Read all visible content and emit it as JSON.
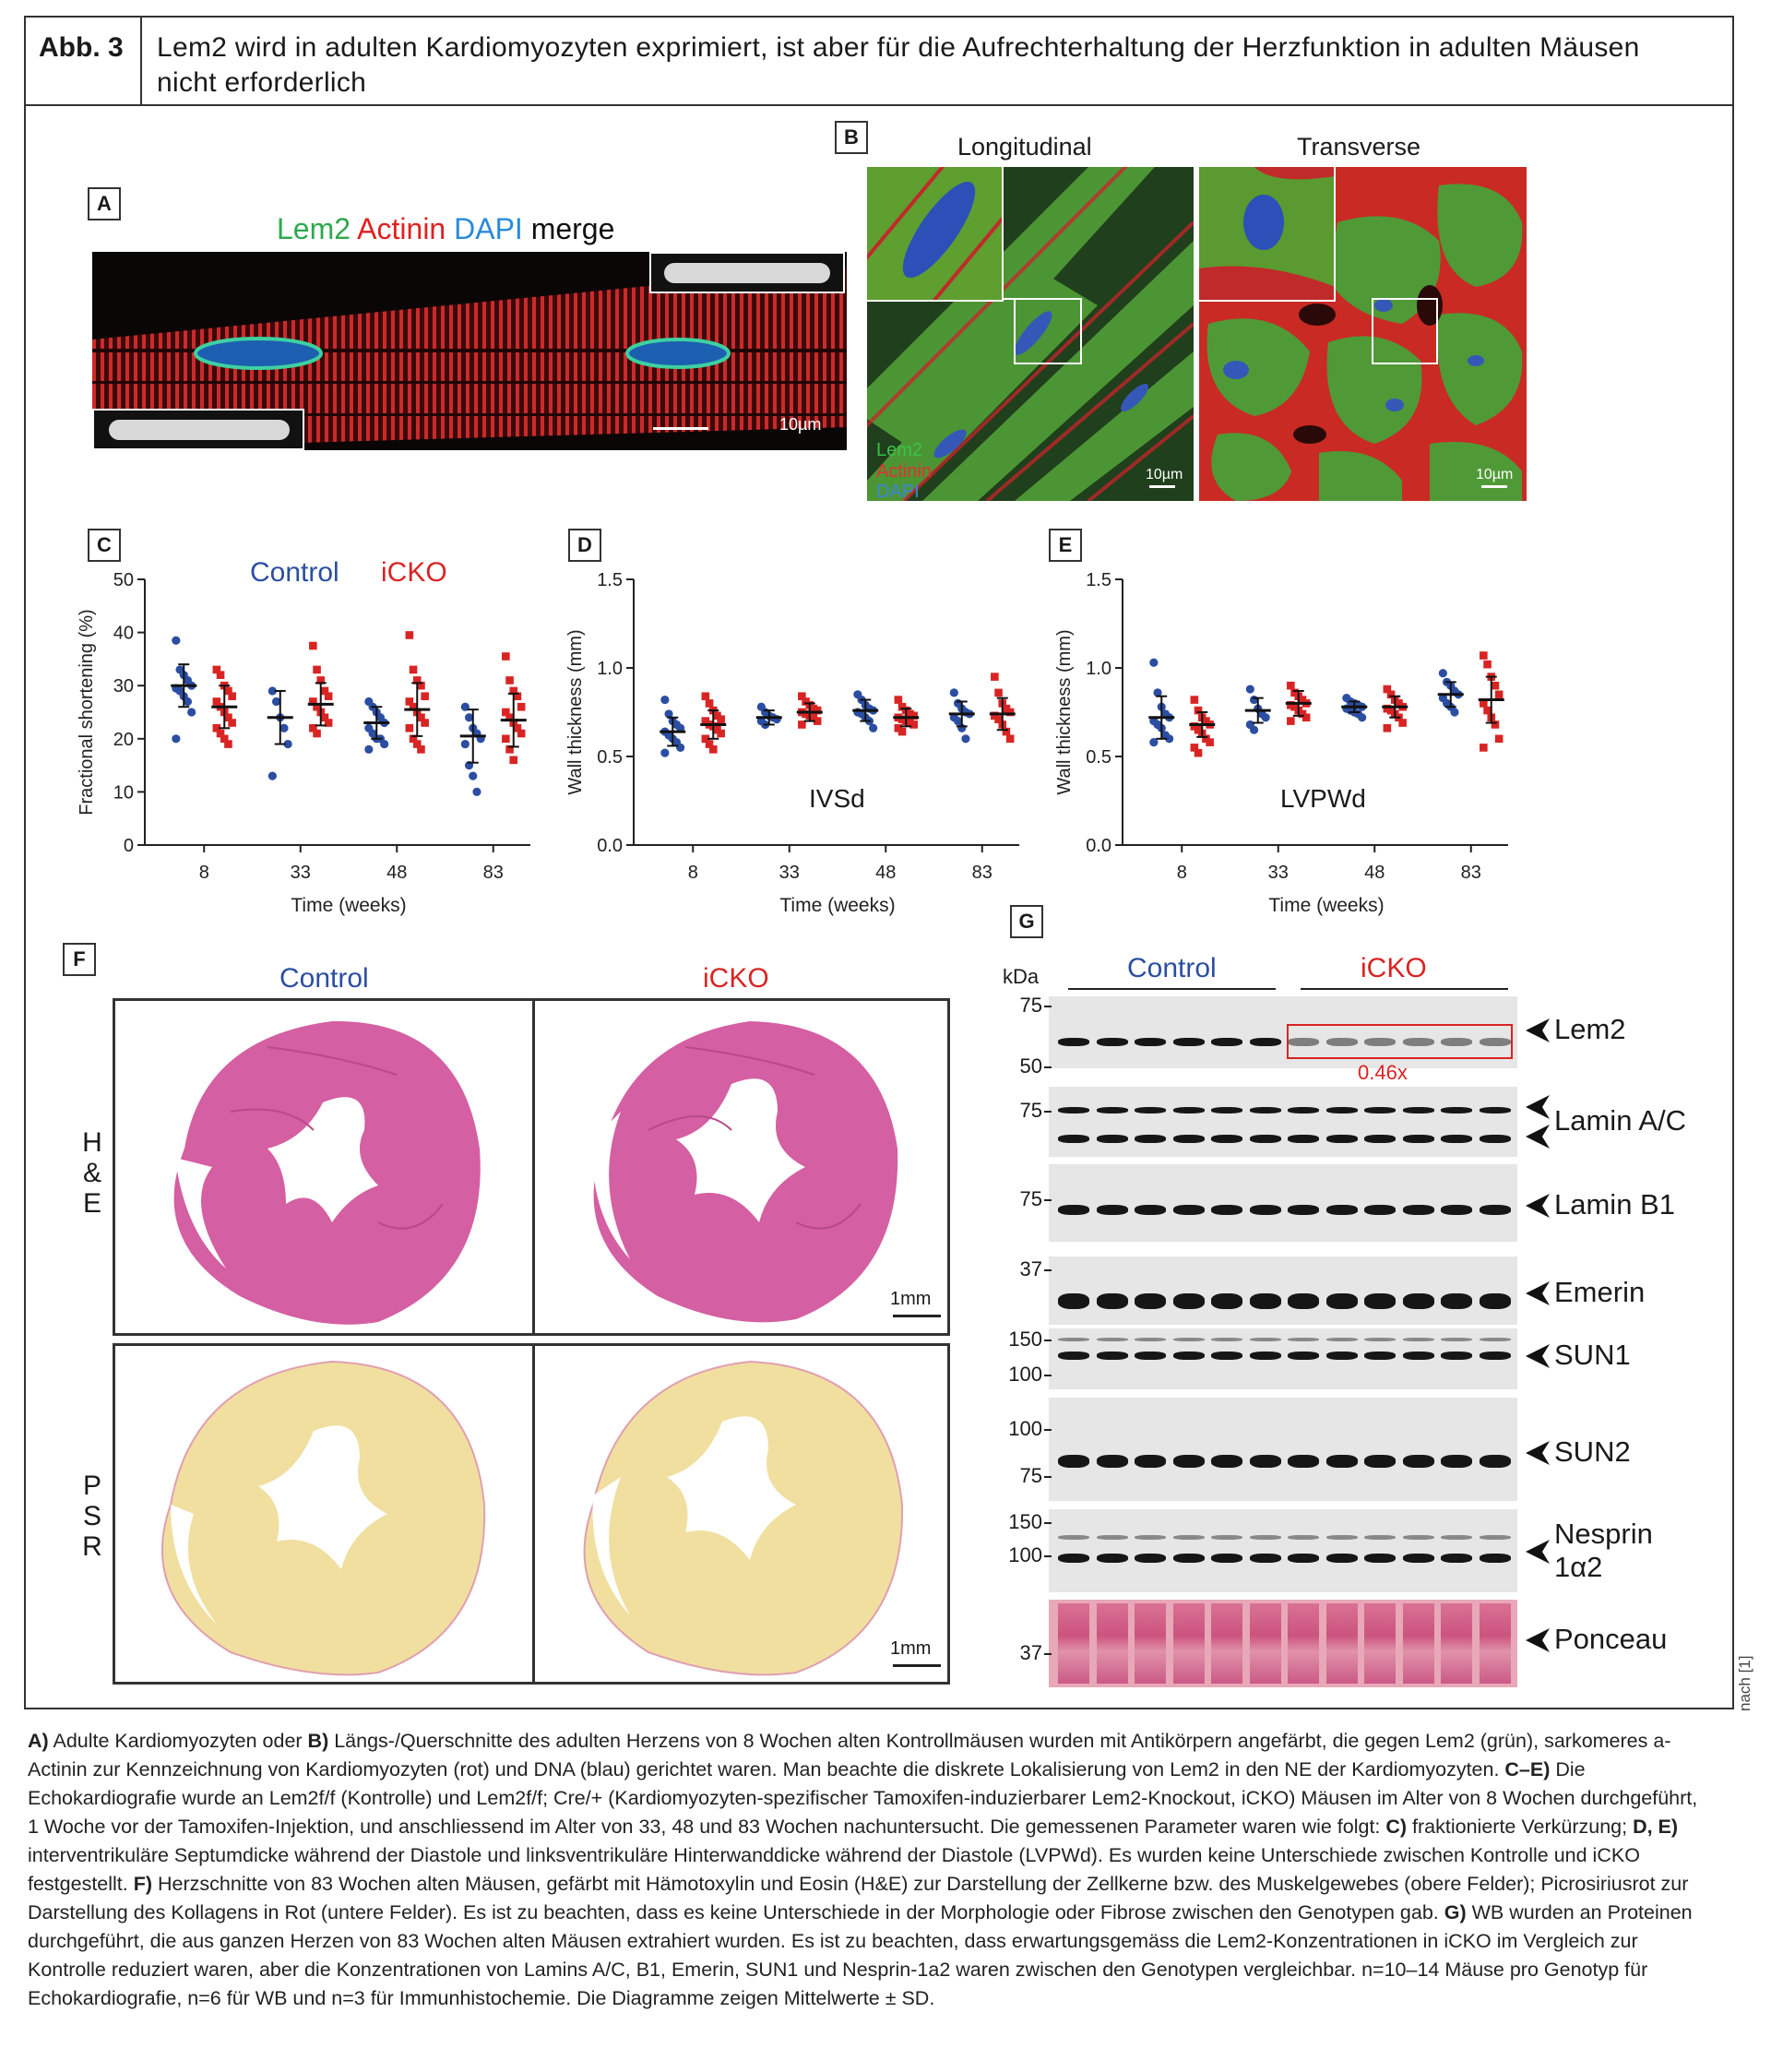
{
  "figure": {
    "label": "Abb. 3",
    "title": "Lem2 wird in adulten Kardiomyozyten exprimiert, ist aber für die Aufrechterhaltung der Herzfunktion in adulten Mäusen nicht erforderlich",
    "source": "nach [1]"
  },
  "panel_a": {
    "label": "A",
    "stain_lem2": "Lem2",
    "stain_actinin": "Actinin",
    "stain_dapi": "DAPI",
    "stain_merge": "merge",
    "scale": "10µm"
  },
  "panel_b": {
    "label": "B",
    "longitudinal": "Longitudinal",
    "transverse": "Transverse",
    "legend_lem2": "Lem2",
    "legend_actinin": "Actinin",
    "legend_dapi": "DAPI",
    "scale_left": "10µm",
    "scale_right": "10µm"
  },
  "panel_c": {
    "label": "C",
    "legend_control": "Control",
    "legend_icko": "iCKO"
  },
  "panel_d": {
    "label": "D",
    "annotation": "IVSd"
  },
  "panel_e": {
    "label": "E",
    "annotation": "LVPWd"
  },
  "panel_f": {
    "label": "F",
    "control": "Control",
    "icko": "iCKO",
    "row_he": [
      "H",
      "&",
      "E"
    ],
    "row_psr": [
      "P",
      "S",
      "R"
    ],
    "scale_he": "1mm",
    "scale_psr": "1mm"
  },
  "panel_g": {
    "label": "G",
    "kda": "kDa",
    "control": "Control",
    "icko": "iCKO",
    "ratio": "0.46x",
    "blots": [
      {
        "name": "Lem2",
        "markers": [
          "75",
          "50"
        ]
      },
      {
        "name": "Lamin A/C",
        "markers": [
          "75"
        ]
      },
      {
        "name": "Lamin B1",
        "markers": [
          "75"
        ]
      },
      {
        "name": "Emerin",
        "markers": [
          "37"
        ]
      },
      {
        "name": "SUN1",
        "markers": [
          "150",
          "100"
        ]
      },
      {
        "name": "SUN2",
        "markers": [
          "100",
          "75"
        ]
      },
      {
        "name": "Nesprin",
        "name2": "1α2",
        "markers": [
          "150",
          "100"
        ]
      },
      {
        "name": "Ponceau",
        "markers": [
          "37"
        ]
      }
    ]
  },
  "chart_data": [
    {
      "type": "scatter",
      "panel": "C",
      "ylabel": "Fractional shortening (%)",
      "xlabel": "Time (weeks)",
      "ylim": [
        0,
        50
      ],
      "yticks": [
        0,
        10,
        20,
        30,
        40,
        50
      ],
      "categories": [
        "8",
        "33",
        "48",
        "83"
      ],
      "series": [
        {
          "name": "Control",
          "color": "#2b4ea2",
          "mean": [
            30,
            24,
            23,
            20.5
          ],
          "sd": [
            4,
            5,
            3,
            5
          ],
          "points": [
            [
              38.5,
              33,
              32,
              31,
              30,
              29.5,
              29,
              28,
              27,
              25,
              20
            ],
            [
              29,
              27,
              24,
              22,
              19,
              13
            ],
            [
              27,
              26,
              25,
              24,
              23,
              22,
              21,
              20,
              20,
              19,
              18
            ],
            [
              26,
              24,
              22,
              21,
              20,
              19,
              15,
              13,
              10
            ]
          ]
        },
        {
          "name": "iCKO",
          "color": "#d92424",
          "mean": [
            26,
            26.5,
            25.5,
            23.5
          ],
          "sd": [
            4,
            4,
            5,
            5
          ],
          "points": [
            [
              33,
              32,
              30,
              29,
              28,
              27,
              26,
              25,
              24,
              23,
              22,
              21,
              20,
              19
            ],
            [
              37.5,
              33,
              31,
              29,
              28,
              27,
              26,
              25,
              24,
              23,
              22,
              21
            ],
            [
              39.5,
              33,
              31,
              30,
              28,
              27,
              26,
              25,
              24,
              23,
              22,
              20,
              19,
              18
            ],
            [
              35.5,
              31,
              29,
              28,
              26,
              25,
              24,
              23,
              22,
              21,
              20,
              18,
              16
            ]
          ]
        }
      ]
    },
    {
      "type": "scatter",
      "panel": "D",
      "ylabel": "Wall thickness (mm)",
      "xlabel": "Time (weeks)",
      "ylim": [
        0,
        1.5
      ],
      "yticks": [
        "0.0",
        "0.5",
        "1.0",
        "1.5"
      ],
      "categories": [
        "8",
        "33",
        "48",
        "83"
      ],
      "series": [
        {
          "name": "Control",
          "color": "#2b4ea2",
          "mean": [
            0.64,
            0.72,
            0.76,
            0.74
          ],
          "sd": [
            0.08,
            0.04,
            0.06,
            0.07
          ],
          "points": [
            [
              0.82,
              0.74,
              0.7,
              0.68,
              0.66,
              0.64,
              0.62,
              0.6,
              0.58,
              0.55,
              0.52
            ],
            [
              0.78,
              0.75,
              0.73,
              0.72,
              0.71,
              0.7,
              0.68
            ],
            [
              0.85,
              0.82,
              0.79,
              0.77,
              0.76,
              0.75,
              0.74,
              0.72,
              0.7,
              0.66
            ],
            [
              0.86,
              0.8,
              0.77,
              0.75,
              0.74,
              0.72,
              0.7,
              0.66,
              0.6
            ]
          ]
        },
        {
          "name": "iCKO",
          "color": "#d92424",
          "mean": [
            0.68,
            0.75,
            0.72,
            0.74
          ],
          "sd": [
            0.08,
            0.05,
            0.05,
            0.09
          ],
          "points": [
            [
              0.84,
              0.8,
              0.76,
              0.73,
              0.71,
              0.7,
              0.68,
              0.67,
              0.65,
              0.63,
              0.6,
              0.57,
              0.54
            ],
            [
              0.84,
              0.81,
              0.79,
              0.77,
              0.76,
              0.75,
              0.74,
              0.73,
              0.72,
              0.7,
              0.68
            ],
            [
              0.82,
              0.78,
              0.76,
              0.74,
              0.73,
              0.72,
              0.71,
              0.7,
              0.69,
              0.68,
              0.66,
              0.64
            ],
            [
              0.95,
              0.86,
              0.8,
              0.77,
              0.75,
              0.73,
              0.71,
              0.68,
              0.64,
              0.6
            ]
          ]
        }
      ]
    },
    {
      "type": "scatter",
      "panel": "E",
      "ylabel": "Wall thickness (mm)",
      "xlabel": "Time (weeks)",
      "ylim": [
        0,
        1.5
      ],
      "yticks": [
        "0.0",
        "0.5",
        "1.0",
        "1.5"
      ],
      "categories": [
        "8",
        "33",
        "48",
        "83"
      ],
      "series": [
        {
          "name": "Control",
          "color": "#2b4ea2",
          "mean": [
            0.72,
            0.76,
            0.78,
            0.85
          ],
          "sd": [
            0.12,
            0.07,
            0.03,
            0.07
          ],
          "points": [
            [
              1.03,
              0.86,
              0.78,
              0.74,
              0.72,
              0.7,
              0.68,
              0.66,
              0.62,
              0.6,
              0.58
            ],
            [
              0.88,
              0.82,
              0.77,
              0.74,
              0.72,
              0.68,
              0.65
            ],
            [
              0.83,
              0.81,
              0.8,
              0.79,
              0.78,
              0.77,
              0.76,
              0.75,
              0.74,
              0.72
            ],
            [
              0.97,
              0.92,
              0.9,
              0.87,
              0.85,
              0.83,
              0.8,
              0.78,
              0.75
            ]
          ]
        },
        {
          "name": "iCKO",
          "color": "#d92424",
          "mean": [
            0.68,
            0.8,
            0.78,
            0.82
          ],
          "sd": [
            0.07,
            0.07,
            0.06,
            0.13
          ],
          "points": [
            [
              0.82,
              0.76,
              0.72,
              0.7,
              0.68,
              0.67,
              0.65,
              0.63,
              0.6,
              0.58,
              0.55,
              0.52
            ],
            [
              0.9,
              0.86,
              0.84,
              0.82,
              0.8,
              0.79,
              0.78,
              0.76,
              0.74,
              0.72,
              0.7
            ],
            [
              0.88,
              0.85,
              0.82,
              0.8,
              0.78,
              0.77,
              0.76,
              0.74,
              0.72,
              0.69,
              0.66
            ],
            [
              1.07,
              1.02,
              0.95,
              0.9,
              0.85,
              0.8,
              0.76,
              0.72,
              0.68,
              0.6,
              0.55
            ]
          ]
        }
      ]
    }
  ],
  "caption": [
    {
      "b": "A)",
      "t": " Adulte Kardiomyozyten oder "
    },
    {
      "b": "B)",
      "t": " Längs-/Querschnitte des adulten Herzens von 8 Wochen alten Kontrollmäusen wurden mit Antikörpern angefärbt, die gegen Lem2 (grün), sarkomeres a-Actinin zur Kennzeichnung von Kardiomyozyten (rot) und DNA (blau) gerichtet waren. Man beachte die diskrete Lokalisierung von Lem2 in den NE der Kardiomyozyten. "
    },
    {
      "b": "C–E)",
      "t": " Die Echokardiografie wurde an Lem2f/f (Kontrolle) und Lem2f/f; Cre/+ (Kardiomyozyten-spezifischer Tamoxifen-induzierbarer Lem2-Knockout, iCKO) Mäusen im Alter von 8 Wochen durchgeführt, 1 Woche vor der Tamoxifen-Injektion, und anschliessend im Alter von 33, 48 und 83 Wochen nach­untersucht. Die gemessenen Parameter waren wie folgt: "
    },
    {
      "b": "C)",
      "t": " fraktionierte Verkürzung; "
    },
    {
      "b": "D, E)",
      "t": " interventrikuläre Septumdicke während der Diastole und linksventrikuläre Hinterwanddicke während der Diastole (LVPWd). Es wurden keine Unterschiede zwischen Kontrolle und iCKO festgestellt. "
    },
    {
      "b": "F)",
      "t": " Herzschnitte von 83 Wochen alten Mäu­sen, gefärbt mit Hämotoxylin und Eosin (H&E) zur Darstellung der Zellkerne bzw. des Muskelgewebes (obere Felder); Picrosiriusrot zur Darstellung des Kollagens in Rot (untere Felder). Es ist zu beachten, dass es keine Unterschiede in der Morphologie oder Fibrose zwischen den Genotypen gab. "
    },
    {
      "b": "G)",
      "t": " WB wurden an Proteinen durch­geführt, die aus ganzen Herzen von 83 Wochen alten Mäusen extrahiert wurden. Es ist zu beachten, dass erwartungsgemäss die Lem2-Konzentrationen in iCKO im Vergleich zur Kontrolle reduziert waren, aber die Konzentrationen von Lamins A/C, B1, Emerin, SUN1 und Nesprin-1a2 waren zwischen den Genotypen vergleichbar. n=10–14 Mäuse pro Genotyp für Echokardiografie, n=6 für WB und n=3 für Immunhistochemie. Die Diagramme zeigen Mittelwerte ± SD."
    }
  ],
  "colors": {
    "control": "#2b4ea2",
    "icko": "#d92424"
  }
}
